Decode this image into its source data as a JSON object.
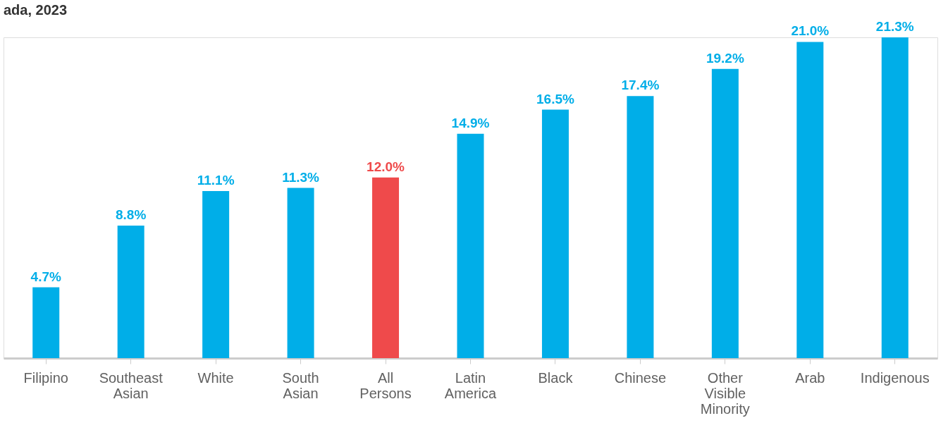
{
  "chart_data": {
    "type": "bar",
    "title": "ada, 2023",
    "categories": [
      "Filipino",
      "Southeast Asian",
      "White",
      "South Asian",
      "All Persons",
      "Latin America",
      "Black",
      "Chinese",
      "Other Visible Minority",
      "Arab",
      "Indigenous"
    ],
    "values": [
      4.7,
      8.8,
      11.1,
      11.3,
      12.0,
      14.9,
      16.5,
      17.4,
      19.2,
      21.0,
      21.3
    ],
    "colors": [
      "#00aee8",
      "#00aee8",
      "#00aee8",
      "#00aee8",
      "#ef4a4b",
      "#00aee8",
      "#00aee8",
      "#00aee8",
      "#00aee8",
      "#00aee8",
      "#00aee8"
    ],
    "value_labels": [
      "4.7%",
      "8.8%",
      "11.1%",
      "11.3%",
      "12.0%",
      "14.9%",
      "16.5%",
      "17.4%",
      "19.2%",
      "21.0%",
      "21.3%"
    ],
    "tick_labels": "x",
    "grid": false
  }
}
